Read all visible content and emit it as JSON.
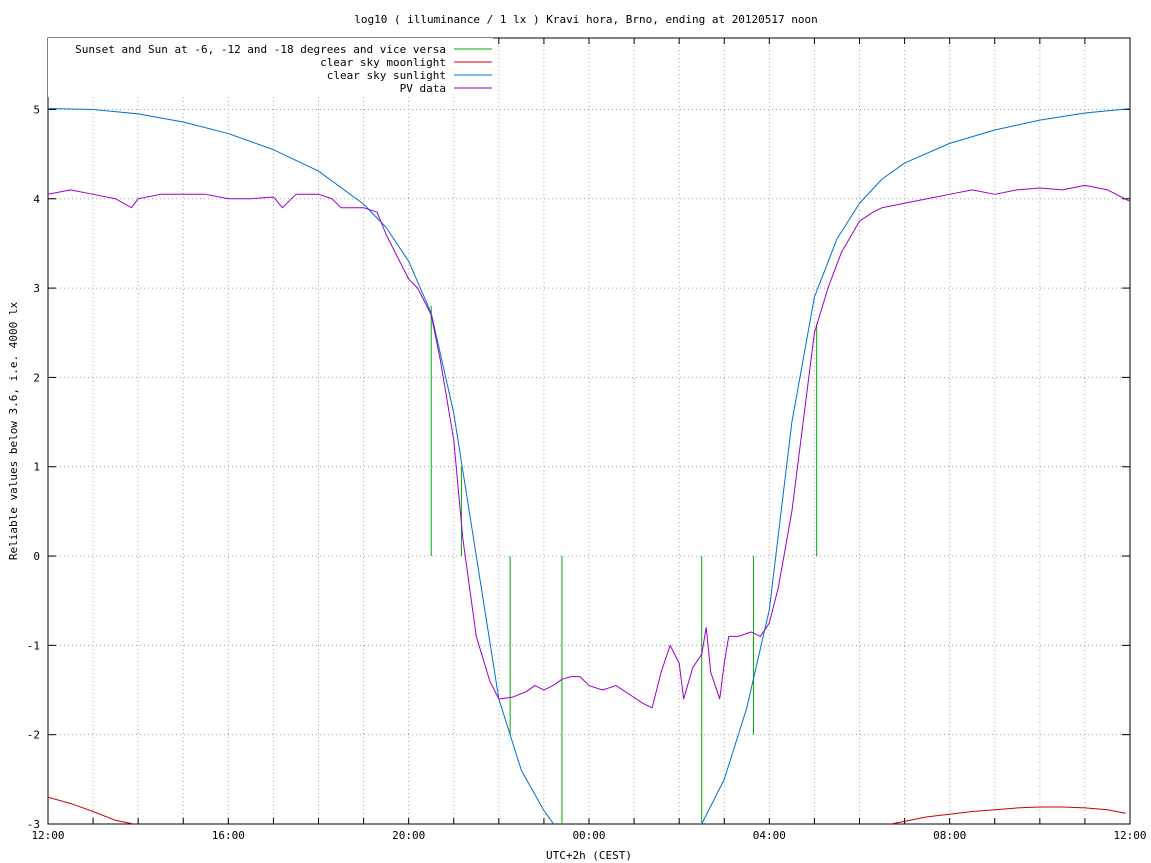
{
  "chart_data": {
    "type": "line",
    "title": "log10 ( illuminance / 1 lx ) Kravi hora, Brno, ending at 20120517 noon",
    "xlabel": "UTC+2h (CEST)",
    "ylabel": "Reliable values below 3.6, i.e. 4000 lx",
    "xlim": [
      12,
      36
    ],
    "ylim": [
      -3,
      5.8
    ],
    "x_tick_step_hours": 1,
    "x_tick_labels": [
      {
        "x": 12,
        "label": "12:00"
      },
      {
        "x": 16,
        "label": "16:00"
      },
      {
        "x": 20,
        "label": "20:00"
      },
      {
        "x": 24,
        "label": "00:00"
      },
      {
        "x": 28,
        "label": "04:00"
      },
      {
        "x": 32,
        "label": "08:00"
      },
      {
        "x": 36,
        "label": "12:00"
      }
    ],
    "y_ticks": [
      {
        "y": -3,
        "label": "-3"
      },
      {
        "y": -2,
        "label": "-2"
      },
      {
        "y": -1,
        "label": "-1"
      },
      {
        "y": 0,
        "label": "0"
      },
      {
        "y": 1,
        "label": "1"
      },
      {
        "y": 2,
        "label": "2"
      },
      {
        "y": 3,
        "label": "3"
      },
      {
        "y": 4,
        "label": "4"
      },
      {
        "y": 5,
        "label": "5"
      }
    ],
    "grid": true,
    "legend_position": "top-left",
    "series": [
      {
        "name": "Sunset and Sun at -6, -12 and -18 degrees and vice versa",
        "color": "#00aa00",
        "style": "impulses",
        "x": [
          20.5,
          21.17,
          22.25,
          23.4,
          26.5,
          27.65,
          29.05
        ],
        "y": [
          2.8,
          1.0,
          -2.0,
          -3.0,
          -3.0,
          -2.0,
          2.6
        ]
      },
      {
        "name": "clear sky moonlight",
        "color": "#cc0000",
        "x": [
          12.0,
          12.5,
          13.0,
          13.5,
          13.9,
          30.7,
          31.5,
          32.5,
          33.0,
          33.5,
          34.0,
          34.5,
          35.0,
          35.5,
          35.9
        ],
        "y": [
          -2.7,
          -2.77,
          -2.86,
          -2.96,
          -3.0,
          -3.0,
          -2.92,
          -2.86,
          -2.84,
          -2.82,
          -2.81,
          -2.81,
          -2.82,
          -2.84,
          -2.88
        ]
      },
      {
        "name": "clear sky sunlight",
        "color": "#0070cc",
        "x": [
          12.0,
          13.0,
          14.0,
          15.0,
          16.0,
          17.0,
          18.0,
          19.0,
          19.5,
          20.0,
          20.5,
          21.0,
          21.5,
          22.0,
          22.5,
          23.0,
          23.5,
          24.0,
          24.5,
          25.0,
          25.5,
          26.0,
          26.5,
          27.0,
          27.5,
          28.0,
          28.5,
          29.0,
          29.5,
          30.0,
          30.5,
          31.0,
          32.0,
          33.0,
          34.0,
          35.0,
          36.0
        ],
        "y": [
          5.01,
          5.0,
          4.95,
          4.86,
          4.73,
          4.55,
          4.31,
          3.94,
          3.68,
          3.3,
          2.72,
          1.6,
          0.0,
          -1.6,
          -2.4,
          -2.85,
          -3.2,
          -3.6,
          -3.6,
          -3.3,
          -3.1,
          -3.05,
          -3.0,
          -2.5,
          -1.7,
          -0.6,
          1.5,
          2.9,
          3.55,
          3.95,
          4.22,
          4.4,
          4.62,
          4.77,
          4.88,
          4.96,
          5.01
        ]
      },
      {
        "name": "PV data",
        "color": "#9900cc",
        "x": [
          12.0,
          12.5,
          13.0,
          13.5,
          13.85,
          14.0,
          14.5,
          15.0,
          15.5,
          16.0,
          16.5,
          17.0,
          17.2,
          17.5,
          18.0,
          18.3,
          18.5,
          19.0,
          19.3,
          19.5,
          19.7,
          20.0,
          20.2,
          20.5,
          20.7,
          21.0,
          21.2,
          21.5,
          21.8,
          22.0,
          22.3,
          22.6,
          22.8,
          23.0,
          23.2,
          23.4,
          23.6,
          23.8,
          24.0,
          24.3,
          24.6,
          24.9,
          25.2,
          25.4,
          25.6,
          25.8,
          26.0,
          26.1,
          26.3,
          26.5,
          26.6,
          26.7,
          26.9,
          27.0,
          27.1,
          27.3,
          27.6,
          27.8,
          28.0,
          28.2,
          28.5,
          28.8,
          29.0,
          29.3,
          29.6,
          30.0,
          30.3,
          30.5,
          31.0,
          31.5,
          32.0,
          32.5,
          33.0,
          33.5,
          34.0,
          34.5,
          35.0,
          35.5,
          36.0
        ],
        "y": [
          4.05,
          4.1,
          4.05,
          4.0,
          3.9,
          4.0,
          4.05,
          4.05,
          4.05,
          4.0,
          4.0,
          4.02,
          3.9,
          4.05,
          4.05,
          4.0,
          3.9,
          3.9,
          3.85,
          3.6,
          3.4,
          3.1,
          3.0,
          2.7,
          2.2,
          1.3,
          0.2,
          -0.9,
          -1.4,
          -1.6,
          -1.58,
          -1.52,
          -1.45,
          -1.5,
          -1.45,
          -1.38,
          -1.35,
          -1.35,
          -1.45,
          -1.5,
          -1.45,
          -1.55,
          -1.65,
          -1.7,
          -1.3,
          -1.0,
          -1.2,
          -1.6,
          -1.25,
          -1.1,
          -0.8,
          -1.3,
          -1.6,
          -1.2,
          -0.9,
          -0.9,
          -0.85,
          -0.9,
          -0.75,
          -0.35,
          0.5,
          1.7,
          2.5,
          3.0,
          3.4,
          3.75,
          3.85,
          3.9,
          3.95,
          4.0,
          4.05,
          4.1,
          4.05,
          4.1,
          4.12,
          4.1,
          4.15,
          4.1,
          3.97
        ]
      }
    ]
  }
}
